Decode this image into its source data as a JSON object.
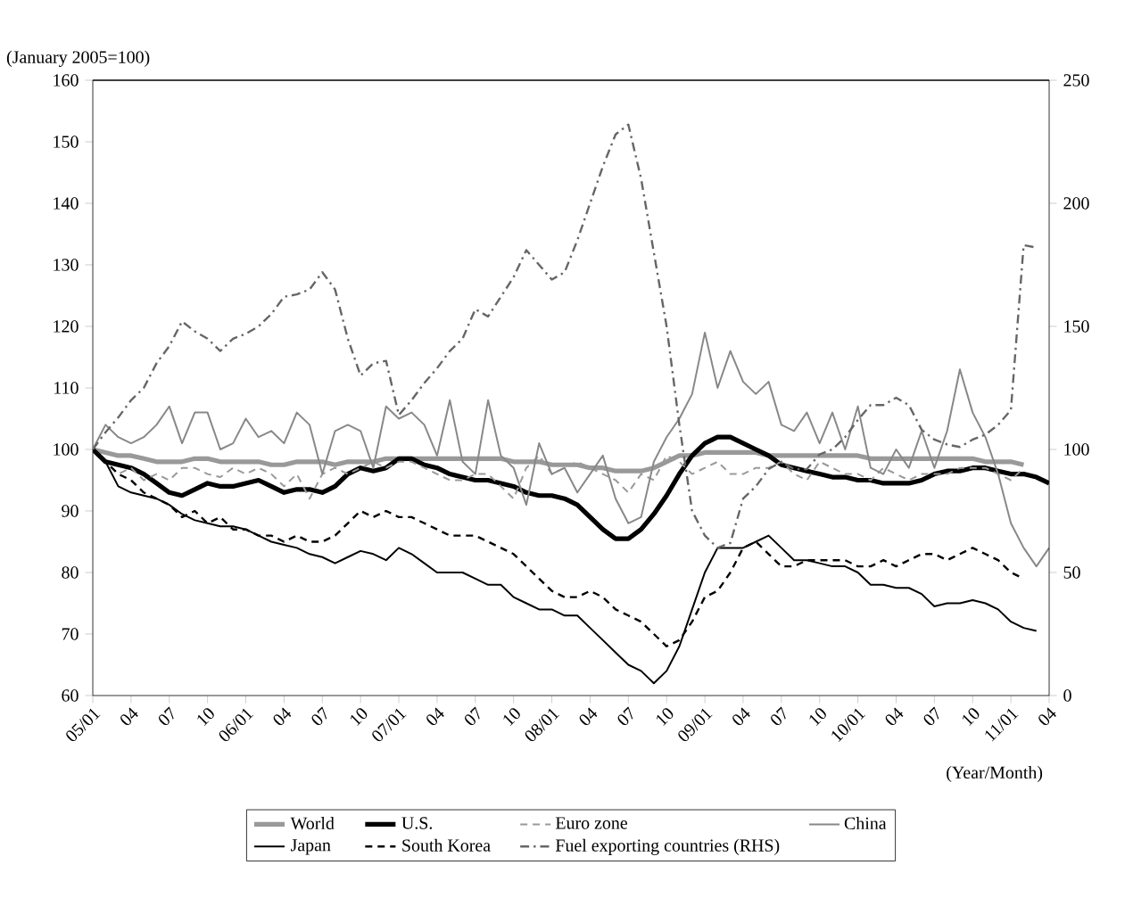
{
  "chart_data": {
    "type": "line",
    "ylabel": "(January 2005=100)",
    "xlabel": "(Year/Month)",
    "categories": [
      "05/01",
      null,
      null,
      "04",
      null,
      null,
      "07",
      null,
      null,
      "10",
      null,
      null,
      "06/01",
      null,
      null,
      "04",
      null,
      null,
      "07",
      null,
      null,
      "10",
      null,
      null,
      "07/01",
      null,
      null,
      "04",
      null,
      null,
      "07",
      null,
      null,
      "10",
      null,
      null,
      "08/01",
      null,
      null,
      "04",
      null,
      null,
      "07",
      null,
      null,
      "10",
      null,
      null,
      "09/01",
      null,
      null,
      "04",
      null,
      null,
      "07",
      null,
      null,
      "10",
      null,
      null,
      "10/01",
      null,
      null,
      "04",
      null,
      null,
      "07",
      null,
      null,
      "10",
      null,
      null,
      "11/01",
      null,
      null,
      "04"
    ],
    "ylim": [
      60,
      160
    ],
    "yticks": [
      60,
      70,
      80,
      90,
      100,
      110,
      120,
      130,
      140,
      150,
      160
    ],
    "y2lim": [
      0,
      250
    ],
    "y2ticks": [
      0,
      50,
      100,
      150,
      200,
      250
    ],
    "legend": "bottom",
    "series": [
      {
        "name": "World",
        "color": "#999999",
        "line_style": "solid",
        "values": [
          100,
          99.5,
          99,
          99,
          98.5,
          98,
          98,
          98,
          98.5,
          98.5,
          98,
          98,
          98,
          98,
          97.5,
          97.5,
          98,
          98,
          98,
          97.5,
          98,
          98,
          98,
          98.5,
          98.5,
          98.5,
          98.5,
          98.5,
          98.5,
          98.5,
          98.5,
          98.5,
          98.5,
          98,
          98,
          98,
          97.5,
          97.5,
          97.5,
          97,
          97,
          96.5,
          96.5,
          96.5,
          97,
          98,
          99,
          99,
          99.5,
          99.5,
          99.5,
          99.5,
          99.5,
          99,
          99,
          99,
          99,
          99,
          99,
          99,
          99,
          98.5,
          98.5,
          98.5,
          98.5,
          98.5,
          98.5,
          98.5,
          98.5,
          98.5,
          98,
          98,
          98,
          97.5,
          null,
          null
        ]
      },
      {
        "name": "U.S.",
        "color": "#000000",
        "line_style": "solid",
        "values": [
          100,
          98,
          97.5,
          97,
          96,
          94.5,
          93,
          92.5,
          93.5,
          94.5,
          94,
          94,
          94.5,
          95,
          94,
          93,
          93.5,
          93.5,
          93,
          94,
          96,
          97,
          96.5,
          97,
          98.5,
          98.5,
          97.5,
          97,
          96,
          95.5,
          95,
          95,
          94.5,
          94,
          93,
          92.5,
          92.5,
          92,
          91,
          89,
          87,
          85.5,
          85.5,
          87,
          89.5,
          92.5,
          96,
          99,
          101,
          102,
          102,
          101,
          100,
          99,
          97.5,
          97,
          96.5,
          96,
          95.5,
          95.5,
          95,
          95,
          94.5,
          94.5,
          94.5,
          95,
          96,
          96.5,
          96.5,
          97,
          97,
          96.5,
          96,
          96,
          95.5,
          94.5
        ]
      },
      {
        "name": "Euro zone",
        "color": "#999999",
        "line_style": "dashed",
        "values": [
          100,
          98,
          96,
          97,
          95,
          96,
          95,
          97,
          97,
          96,
          95.5,
          97,
          96,
          97,
          96,
          94,
          96,
          92,
          96,
          97,
          96,
          97,
          98,
          97,
          98,
          98,
          97,
          96,
          95,
          95,
          96,
          96,
          94,
          92,
          97,
          99,
          96,
          97,
          98,
          97,
          96,
          95,
          93,
          96,
          95,
          99,
          98,
          96,
          97,
          98,
          96,
          96,
          97,
          97,
          98,
          96,
          95,
          98,
          97,
          96,
          96,
          95,
          97,
          96,
          95,
          96,
          96,
          96,
          97,
          97,
          97,
          96,
          95,
          97,
          null,
          null
        ]
      },
      {
        "name": "China",
        "color": "#888888",
        "line_style": "solid",
        "values": [
          100,
          104,
          102,
          101,
          102,
          104,
          107,
          101,
          106,
          106,
          100,
          101,
          105,
          102,
          103,
          101,
          106,
          104,
          96,
          103,
          104,
          103,
          97,
          107,
          105,
          106,
          104,
          99,
          108,
          98,
          96,
          108,
          99,
          97,
          91,
          101,
          96,
          97,
          93,
          96,
          99,
          92,
          88,
          89,
          98,
          102,
          105,
          109,
          119,
          110,
          116,
          111,
          109,
          111,
          104,
          103,
          106,
          101,
          106,
          100,
          107,
          97,
          96,
          100,
          97,
          103,
          97,
          103,
          113,
          106,
          102,
          96,
          88,
          84,
          81,
          84
        ]
      },
      {
        "name": "Japan",
        "color": "#000000",
        "line_style": "solid",
        "values": [
          100,
          98,
          94,
          93,
          92.5,
          92,
          91,
          89.5,
          88.5,
          88,
          87.5,
          87.5,
          87,
          86,
          85,
          84.5,
          84,
          83,
          82.5,
          81.5,
          82.5,
          83.5,
          83,
          82,
          84,
          83,
          81.5,
          80,
          80,
          80,
          79,
          78,
          78,
          76,
          75,
          74,
          74,
          73,
          73,
          71,
          69,
          67,
          65,
          64,
          62,
          64,
          68,
          74,
          80,
          84,
          84,
          84,
          85,
          86,
          84,
          82,
          82,
          81.5,
          81,
          81,
          80,
          78,
          78,
          77.5,
          77.5,
          76.5,
          74.5,
          75,
          75,
          75.5,
          75,
          74,
          72,
          71,
          70.5,
          null
        ]
      },
      {
        "name": "South Korea",
        "color": "#000000",
        "line_style": "dashed",
        "values": [
          100,
          98,
          96,
          95,
          93,
          92,
          91,
          89,
          90,
          88,
          89,
          87,
          87,
          86,
          86,
          85,
          86,
          85,
          85,
          86,
          88,
          90,
          89,
          90,
          89,
          89,
          88,
          87,
          86,
          86,
          86,
          85,
          84,
          83,
          81,
          79,
          77,
          76,
          76,
          77,
          76,
          74,
          73,
          72,
          70,
          68,
          69,
          72,
          76,
          77,
          80,
          84,
          85,
          83,
          81,
          81,
          82,
          82,
          82,
          82,
          81,
          81,
          82,
          81,
          82,
          83,
          83,
          82,
          83,
          84,
          83,
          82,
          80,
          79,
          null,
          null
        ]
      },
      {
        "name": "Fuel exporting countries (RHS)",
        "color": "#666666",
        "line_style": "dashdot",
        "axis": "y2",
        "values": [
          100,
          107,
          113,
          120,
          125,
          135,
          142,
          152,
          148,
          145,
          140,
          145,
          147,
          150,
          155,
          162,
          163,
          165,
          172,
          165,
          145,
          130,
          135,
          136,
          114,
          120,
          127,
          133,
          140,
          145,
          157,
          154,
          162,
          170,
          181,
          175,
          169,
          172,
          185,
          200,
          215,
          228,
          232,
          210,
          180,
          150,
          110,
          75,
          65,
          60,
          62,
          80,
          85,
          92,
          95,
          92,
          92,
          98,
          100,
          105,
          112,
          118,
          118,
          121,
          118,
          108,
          104,
          102,
          101,
          104,
          106,
          110,
          116,
          183,
          182,
          null
        ]
      }
    ]
  }
}
